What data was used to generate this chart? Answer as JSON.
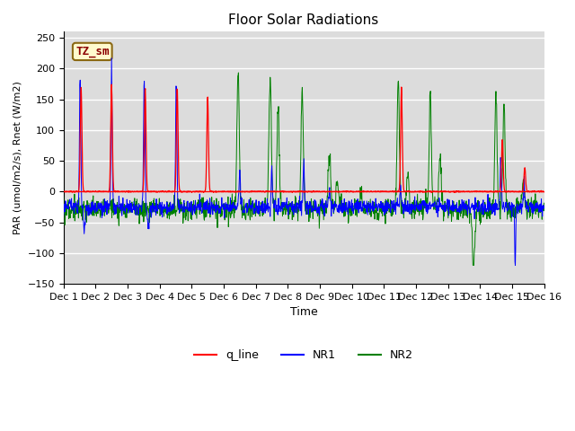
{
  "title": "Floor Solar Radiations",
  "xlabel": "Time",
  "ylabel": "PAR (umol/m2/s), Rnet (W/m2)",
  "ylim": [
    -150,
    260
  ],
  "xlim": [
    0,
    360
  ],
  "xtick_labels": [
    "Dec 1",
    "Dec 2",
    "Dec 3",
    "Dec 4",
    "Dec 5",
    "Dec 6",
    "Dec 7",
    "Dec 8",
    "Dec 9",
    "Dec 10",
    "Dec 11",
    "Dec 12",
    "Dec 13",
    "Dec 14",
    "Dec 15",
    "Dec 16"
  ],
  "annotation_text": "TZ_sm",
  "annotation_box_facecolor": "#FFFACD",
  "annotation_border_color": "#8B6914",
  "annotation_text_color": "#8B0000",
  "legend_entries": [
    "q_line",
    "NR1",
    "NR2"
  ],
  "line_colors": [
    "red",
    "blue",
    "green"
  ],
  "background_color": "#DCDCDC",
  "grid_color": "white",
  "title_fontsize": 11,
  "ylabel_fontsize": 8,
  "xlabel_fontsize": 9,
  "tick_fontsize": 8,
  "legend_fontsize": 9
}
